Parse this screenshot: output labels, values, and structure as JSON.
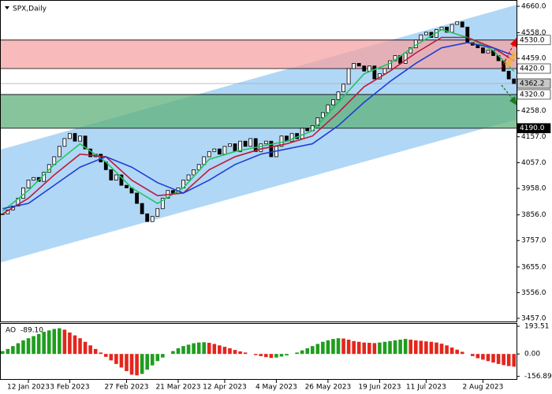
{
  "chart_data": {
    "type": "candlestick",
    "title": "SPX,Daily",
    "bull_color": "#ffffff",
    "bear_color": "#000000",
    "close": [
      3860,
      3875,
      3890,
      3920,
      3960,
      3990,
      4000,
      3985,
      4020,
      4050,
      4080,
      4120,
      4150,
      4170,
      4140,
      4160,
      4110,
      4080,
      4090,
      4060,
      4030,
      3990,
      4010,
      3970,
      3960,
      3940,
      3900,
      3860,
      3830,
      3850,
      3880,
      3920,
      3950,
      3940,
      3960,
      3990,
      4010,
      4030,
      4050,
      4080,
      4100,
      4110,
      4090,
      4120,
      4130,
      4100,
      4140,
      4120,
      4150,
      4100,
      4130,
      4140,
      4080,
      4120,
      4160,
      4140,
      4170,
      4150,
      4190,
      4180,
      4200,
      4230,
      4250,
      4280,
      4300,
      4330,
      4360,
      4420,
      4440,
      4430,
      4410,
      4430,
      4380,
      4400,
      4420,
      4450,
      4470,
      4440,
      4480,
      4500,
      4530,
      4550,
      4560,
      4540,
      4570,
      4580,
      4560,
      4590,
      4600,
      4580,
      4520,
      4510,
      4500,
      4480,
      4490,
      4470,
      4450,
      4410,
      4380,
      4362.2
    ],
    "ylim": [
      3457,
      4660
    ],
    "yticks": [
      {
        "value": 4660,
        "label": "4660.0"
      },
      {
        "value": 4558,
        "label": "4558.0"
      },
      {
        "value": 4459,
        "label": "4459.0"
      },
      {
        "value": 4258,
        "label": "4258.0"
      },
      {
        "value": 4157,
        "label": "4157.0"
      },
      {
        "value": 4057,
        "label": "4057.0"
      },
      {
        "value": 3958,
        "label": "3958.0"
      },
      {
        "value": 3856,
        "label": "3856.0"
      },
      {
        "value": 3757,
        "label": "3757.0"
      },
      {
        "value": 3655,
        "label": "3655.0"
      },
      {
        "value": 3556,
        "label": "3556.0"
      },
      {
        "value": 3457,
        "label": "3457.0"
      }
    ],
    "xticks": [
      {
        "value": 5,
        "label": "12 Jan 2023"
      },
      {
        "value": 13,
        "label": "3 Feb 2023"
      },
      {
        "value": 24,
        "label": "27 Feb 2023"
      },
      {
        "value": 34,
        "label": "21 Mar 2023"
      },
      {
        "value": 43,
        "label": "12 Apr 2023"
      },
      {
        "value": 53,
        "label": "4 May 2023"
      },
      {
        "value": 63,
        "label": "26 May 2023"
      },
      {
        "value": 73,
        "label": "19 Jun 2023"
      },
      {
        "value": 82,
        "label": "11 Jul 2023"
      },
      {
        "value": 93,
        "label": "2 Aug 2023"
      }
    ],
    "moving_averages": [
      {
        "color": "#22c55e",
        "x": [
          0,
          5,
          10,
          15,
          20,
          25,
          30,
          35,
          40,
          45,
          50,
          55,
          60,
          65,
          70,
          75,
          80,
          85,
          90,
          95,
          99
        ],
        "values": [
          3870,
          3950,
          4050,
          4130,
          4060,
          3960,
          3900,
          3960,
          4070,
          4100,
          4120,
          4140,
          4180,
          4290,
          4400,
          4440,
          4510,
          4570,
          4540,
          4490,
          4410
        ]
      },
      {
        "color": "#b91c3c",
        "x": [
          0,
          5,
          10,
          15,
          20,
          25,
          30,
          35,
          40,
          45,
          50,
          55,
          60,
          65,
          70,
          75,
          80,
          85,
          90,
          95,
          99
        ],
        "values": [
          3860,
          3920,
          4010,
          4090,
          4080,
          3990,
          3930,
          3940,
          4030,
          4080,
          4110,
          4130,
          4160,
          4250,
          4350,
          4410,
          4480,
          4540,
          4540,
          4500,
          4450
        ]
      },
      {
        "color": "#1d3fd6",
        "x": [
          0,
          5,
          10,
          15,
          20,
          25,
          30,
          35,
          40,
          45,
          50,
          55,
          60,
          65,
          70,
          75,
          80,
          85,
          90,
          95,
          99
        ],
        "values": [
          3880,
          3900,
          3970,
          4040,
          4080,
          4040,
          3980,
          3940,
          3990,
          4050,
          4090,
          4110,
          4130,
          4200,
          4290,
          4370,
          4440,
          4500,
          4520,
          4500,
          4470
        ]
      }
    ],
    "channel": {
      "color": "#a9d3f5",
      "x": [
        -0.5,
        100.3
      ],
      "upper": [
        4107,
        4670
      ],
      "lower": [
        3672,
        4228
      ]
    },
    "zones": [
      {
        "color": "#f5a3a3",
        "from": {
          "value": 4420,
          "label": "4420.0"
        },
        "to": {
          "value": 4530,
          "label": "4530.0"
        }
      },
      {
        "color": "#5fb079",
        "from": {
          "value": 4190,
          "label": "4190.0"
        },
        "to": {
          "value": 4320,
          "label": "4320.0"
        }
      }
    ],
    "price_line": 4362.2,
    "ao": {
      "name": "AO",
      "current_label": "-89.10",
      "up_color": "#1e9e1e",
      "down_color": "#e3261c",
      "ylim": [
        -170,
        205
      ],
      "yticks": [
        {
          "value": 193.51,
          "label": "193.51"
        },
        {
          "value": 0,
          "label": "0.00"
        },
        {
          "value": -156.89,
          "label": "-156.89"
        }
      ],
      "values": [
        20,
        35,
        55,
        75,
        95,
        110,
        125,
        140,
        155,
        165,
        175,
        180,
        170,
        150,
        130,
        110,
        85,
        60,
        35,
        10,
        -20,
        -45,
        -70,
        -95,
        -120,
        -145,
        -150,
        -140,
        -110,
        -80,
        -50,
        -25,
        0,
        20,
        40,
        55,
        65,
        75,
        80,
        82,
        78,
        70,
        60,
        50,
        40,
        28,
        18,
        10,
        0,
        -8,
        -15,
        -22,
        -28,
        -25,
        -18,
        -10,
        0,
        10,
        25,
        40,
        55,
        70,
        85,
        95,
        105,
        110,
        108,
        100,
        90,
        85,
        80,
        78,
        76,
        80,
        85,
        90,
        95,
        100,
        105,
        100,
        95,
        92,
        88,
        85,
        80,
        72,
        60,
        45,
        30,
        15,
        0,
        -15,
        -30,
        -40,
        -50,
        -60,
        -70,
        -78,
        -85,
        -89.1
      ]
    }
  }
}
